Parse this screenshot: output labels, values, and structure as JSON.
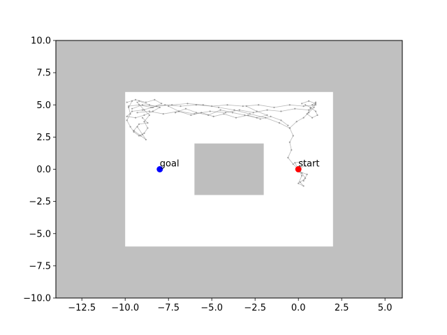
{
  "chart_data": {
    "type": "scatter",
    "title": "",
    "xlabel": "",
    "ylabel": "",
    "xlim": [
      -14,
      6
    ],
    "ylim": [
      -10,
      10
    ],
    "grid": false,
    "x_ticks": [
      -12.5,
      -10.0,
      -7.5,
      -5.0,
      -2.5,
      0.0,
      2.5,
      5.0
    ],
    "x_tick_labels": [
      "−12.5",
      "−10.0",
      "−7.5",
      "−5.0",
      "−2.5",
      "0.0",
      "2.5",
      "5.0"
    ],
    "y_ticks": [
      10.0,
      7.5,
      5.0,
      2.5,
      0.0,
      -2.5,
      -5.0,
      -7.5,
      -10.0
    ],
    "y_tick_labels": [
      "10.0",
      "7.5",
      "5.0",
      "2.5",
      "0.0",
      "−2.5",
      "−5.0",
      "−7.5",
      "−10.0"
    ],
    "regions": [
      {
        "name": "obstacle-field",
        "x": [
          -14,
          6
        ],
        "y": [
          -10,
          10
        ],
        "color": "#c0c0c0"
      },
      {
        "name": "free-space",
        "x": [
          -10,
          2
        ],
        "y": [
          -6,
          6
        ],
        "color": "#ffffff"
      },
      {
        "name": "center-obstacle",
        "x": [
          -6,
          -2
        ],
        "y": [
          -2,
          2
        ],
        "color": "#bebebe"
      }
    ],
    "points": [
      {
        "name": "goal",
        "label": "goal",
        "x": -8.0,
        "y": 0.0,
        "color": "#0000ff"
      },
      {
        "name": "start",
        "label": "start",
        "x": 0.0,
        "y": 0.0,
        "color": "#ff0000"
      }
    ],
    "explored_paths": {
      "color": "#808080",
      "paths": [
        [
          [
            0.0,
            0.0
          ],
          [
            0.2,
            -0.3
          ],
          [
            0.4,
            -0.7
          ],
          [
            0.1,
            -1.0
          ],
          [
            0.3,
            -1.3
          ],
          [
            0.0,
            -1.1
          ],
          [
            0.2,
            -0.5
          ],
          [
            0.0,
            0.0
          ]
        ],
        [
          [
            0.0,
            0.0
          ],
          [
            -0.3,
            0.4
          ],
          [
            -0.6,
            0.9
          ],
          [
            -0.4,
            1.5
          ],
          [
            -0.5,
            2.1
          ],
          [
            -0.3,
            2.6
          ],
          [
            -0.5,
            3.2
          ],
          [
            -0.1,
            3.7
          ],
          [
            0.3,
            4.0
          ],
          [
            0.6,
            4.4
          ],
          [
            0.9,
            4.8
          ],
          [
            1.0,
            5.2
          ],
          [
            0.8,
            5.0
          ]
        ],
        [
          [
            -0.5,
            3.2
          ],
          [
            -1.1,
            3.6
          ],
          [
            -1.9,
            4.0
          ],
          [
            -2.8,
            4.3
          ],
          [
            -3.7,
            4.6
          ],
          [
            -4.6,
            4.8
          ],
          [
            -5.5,
            5.0
          ],
          [
            -6.4,
            5.1
          ],
          [
            -7.3,
            5.0
          ],
          [
            -8.2,
            4.9
          ],
          [
            -9.0,
            5.0
          ],
          [
            -9.6,
            4.7
          ]
        ],
        [
          [
            1.0,
            5.0
          ],
          [
            0.3,
            4.9
          ],
          [
            -0.5,
            5.0
          ],
          [
            -1.4,
            4.8
          ],
          [
            -2.3,
            5.0
          ],
          [
            -3.2,
            4.9
          ],
          [
            -4.1,
            5.0
          ],
          [
            -5.0,
            4.9
          ],
          [
            -5.9,
            5.0
          ],
          [
            -6.8,
            4.9
          ],
          [
            -7.7,
            5.0
          ],
          [
            -8.5,
            4.8
          ],
          [
            -9.2,
            5.0
          ],
          [
            -9.8,
            4.9
          ]
        ],
        [
          [
            0.6,
            4.6
          ],
          [
            -0.2,
            4.7
          ],
          [
            -1.0,
            4.5
          ],
          [
            -1.8,
            4.6
          ],
          [
            -2.6,
            4.4
          ],
          [
            -3.4,
            4.6
          ],
          [
            -4.2,
            4.4
          ],
          [
            -5.1,
            4.5
          ],
          [
            -6.0,
            4.3
          ],
          [
            -6.9,
            4.5
          ],
          [
            -7.8,
            4.3
          ],
          [
            -8.6,
            4.5
          ],
          [
            -9.3,
            4.4
          ]
        ],
        [
          [
            -9.6,
            5.3
          ],
          [
            -9.8,
            4.8
          ],
          [
            -9.7,
            4.3
          ],
          [
            -9.9,
            3.8
          ],
          [
            -9.7,
            3.3
          ],
          [
            -9.5,
            2.9
          ],
          [
            -9.2,
            2.6
          ],
          [
            -8.9,
            2.8
          ],
          [
            -8.7,
            3.2
          ],
          [
            -8.9,
            3.7
          ],
          [
            -8.6,
            4.2
          ],
          [
            -8.9,
            4.6
          ],
          [
            -9.3,
            5.2
          ]
        ],
        [
          [
            -9.9,
            5.2
          ],
          [
            -9.4,
            5.4
          ],
          [
            -8.8,
            5.2
          ],
          [
            -8.3,
            5.4
          ],
          [
            -7.9,
            5.1
          ],
          [
            -8.4,
            4.8
          ],
          [
            -9.0,
            4.6
          ],
          [
            -9.6,
            4.5
          ],
          [
            -9.9,
            4.1
          ],
          [
            -9.4,
            4.0
          ],
          [
            -8.9,
            4.2
          ],
          [
            -8.4,
            4.5
          ],
          [
            -8.0,
            4.8
          ],
          [
            -8.6,
            5.0
          ],
          [
            -9.2,
            5.3
          ]
        ],
        [
          [
            -9.3,
            3.3
          ],
          [
            -9.0,
            2.7
          ],
          [
            -8.8,
            2.3
          ],
          [
            -9.1,
            2.6
          ],
          [
            -9.5,
            3.0
          ],
          [
            -9.2,
            3.5
          ],
          [
            -8.7,
            3.6
          ],
          [
            -9.0,
            4.0
          ]
        ],
        [
          [
            -7.5,
            4.9
          ],
          [
            -6.9,
            4.5
          ],
          [
            -6.2,
            4.2
          ],
          [
            -5.6,
            4.4
          ],
          [
            -4.9,
            4.1
          ],
          [
            -4.3,
            4.3
          ],
          [
            -3.6,
            4.0
          ],
          [
            -2.9,
            4.2
          ],
          [
            -2.2,
            3.9
          ],
          [
            -1.6,
            4.1
          ],
          [
            -1.0,
            3.8
          ],
          [
            -0.6,
            3.4
          ]
        ],
        [
          [
            0.4,
            5.0
          ],
          [
            0.7,
            4.8
          ],
          [
            1.0,
            4.5
          ],
          [
            1.1,
            4.2
          ],
          [
            0.8,
            4.0
          ],
          [
            0.5,
            4.3
          ],
          [
            0.7,
            4.7
          ],
          [
            1.0,
            5.1
          ],
          [
            0.6,
            5.3
          ],
          [
            0.2,
            5.1
          ]
        ],
        [
          [
            -3.0,
            4.9
          ],
          [
            -2.4,
            4.5
          ],
          [
            -1.8,
            4.2
          ],
          [
            -2.4,
            4.0
          ],
          [
            -3.1,
            4.2
          ],
          [
            -3.8,
            4.4
          ],
          [
            -4.5,
            4.6
          ],
          [
            -5.2,
            4.2
          ],
          [
            -5.9,
            4.4
          ],
          [
            -6.5,
            4.7
          ],
          [
            -7.1,
            4.4
          ]
        ],
        [
          [
            0.0,
            0.0
          ],
          [
            0.4,
            0.3
          ],
          [
            0.2,
            0.6
          ],
          [
            -0.2,
            0.5
          ],
          [
            0.1,
            -0.2
          ],
          [
            0.5,
            -0.4
          ],
          [
            0.3,
            -0.9
          ]
        ]
      ]
    },
    "annotations": [
      {
        "target": "goal",
        "text": "goal"
      },
      {
        "target": "start",
        "text": "start"
      }
    ]
  }
}
